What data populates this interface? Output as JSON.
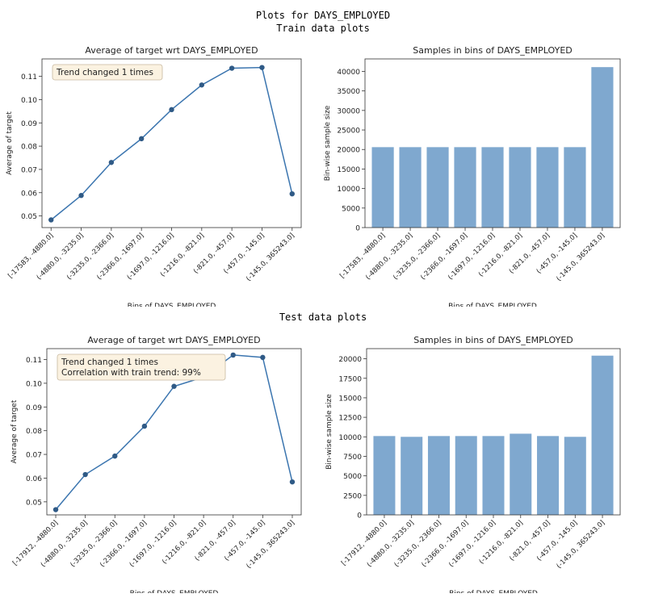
{
  "headings": {
    "main": "Plots for DAYS_EMPLOYED",
    "train": "Train data plots",
    "test": "Test data plots"
  },
  "colors": {
    "line": "#3b75af",
    "bar": "#7fa8cf",
    "annotation_bg": "#fbf2e1",
    "annotation_border": "#c8b9a0"
  },
  "chart_data": [
    {
      "id": "train-line",
      "type": "line",
      "title": "Average of target wrt DAYS_EMPLOYED",
      "xlabel": "Bins of DAYS_EMPLOYED",
      "ylabel": "Average of target",
      "categories": [
        "[-17583, -4880.0]",
        "(-4880.0, -3235.0]",
        "(-3235.0, -2366.0]",
        "(-2366.0, -1697.0]",
        "(-1697.0, -1216.0]",
        "(-1216.0, -821.0]",
        "(-821.0, -457.0]",
        "(-457.0, -145.0]",
        "(-145.0, 365243.0]"
      ],
      "values": [
        0.0483,
        0.0588,
        0.073,
        0.0832,
        0.0957,
        0.1063,
        0.1135,
        0.1138,
        0.0595
      ],
      "ylim": [
        0.045,
        0.1175
      ],
      "yticks": [
        0.05,
        0.06,
        0.07,
        0.08,
        0.09,
        0.1,
        0.11
      ],
      "ytick_labels": [
        "0.05",
        "0.06",
        "0.07",
        "0.08",
        "0.09",
        "0.10",
        "0.11"
      ],
      "annotation": [
        "Trend changed 1 times"
      ],
      "grid": false
    },
    {
      "id": "train-bar",
      "type": "bar",
      "title": "Samples in bins of DAYS_EMPLOYED",
      "xlabel": "Bins of DAYS_EMPLOYED",
      "ylabel": "Bin-wise sample size",
      "categories": [
        "[-17583, -4880.0]",
        "(-4880.0, -3235.0]",
        "(-3235.0, -2366.0]",
        "(-2366.0, -1697.0]",
        "(-1697.0, -1216.0]",
        "(-1216.0, -821.0]",
        "(-821.0, -457.0]",
        "(-457.0, -145.0]",
        "(-145.0, 365243.0]"
      ],
      "values": [
        20600,
        20600,
        20600,
        20600,
        20600,
        20600,
        20600,
        20600,
        41100
      ],
      "ylim": [
        0,
        43200
      ],
      "yticks": [
        0,
        5000,
        10000,
        15000,
        20000,
        25000,
        30000,
        35000,
        40000
      ],
      "ytick_labels": [
        "0",
        "5000",
        "10000",
        "15000",
        "20000",
        "25000",
        "30000",
        "35000",
        "40000"
      ],
      "grid": false
    },
    {
      "id": "test-line",
      "type": "line",
      "title": "Average of target wrt DAYS_EMPLOYED",
      "xlabel": "Bins of DAYS_EMPLOYED",
      "ylabel": "Average of target",
      "categories": [
        "[-17912, -4880.0]",
        "(-4880.0, -3235.0]",
        "(-3235.0, -2366.0]",
        "(-2366.0, -1697.0]",
        "(-1697.0, -1216.0]",
        "(-1216.0, -821.0]",
        "(-821.0, -457.0]",
        "(-457.0, -145.0]",
        "(-145.0, 365243.0]"
      ],
      "values": [
        0.0467,
        0.0615,
        0.0693,
        0.0819,
        0.0987,
        0.1026,
        0.1119,
        0.1109,
        0.0584
      ],
      "ylim": [
        0.0445,
        0.1146
      ],
      "yticks": [
        0.05,
        0.06,
        0.07,
        0.08,
        0.09,
        0.1,
        0.11
      ],
      "ytick_labels": [
        "0.05",
        "0.06",
        "0.07",
        "0.08",
        "0.09",
        "0.10",
        "0.11"
      ],
      "annotation": [
        "Trend changed 1 times",
        "Correlation with train trend: 99%"
      ],
      "grid": false
    },
    {
      "id": "test-bar",
      "type": "bar",
      "title": "Samples in bins of DAYS_EMPLOYED",
      "xlabel": "Bins of DAYS_EMPLOYED",
      "ylabel": "Bin-wise sample size",
      "categories": [
        "[-17912, -4880.0]",
        "(-4880.0, -3235.0]",
        "(-3235.0, -2366.0]",
        "(-2366.0, -1697.0]",
        "(-1697.0, -1216.0]",
        "(-1216.0, -821.0]",
        "(-821.0, -457.0]",
        "(-457.0, -145.0]",
        "(-145.0, 365243.0]"
      ],
      "values": [
        10100,
        10000,
        10100,
        10100,
        10100,
        10400,
        10100,
        10000,
        20400
      ],
      "ylim": [
        0,
        21300
      ],
      "yticks": [
        0,
        2500,
        5000,
        7500,
        10000,
        12500,
        15000,
        17500,
        20000
      ],
      "ytick_labels": [
        "0",
        "2500",
        "5000",
        "7500",
        "10000",
        "12500",
        "15000",
        "17500",
        "20000"
      ],
      "grid": false
    }
  ]
}
